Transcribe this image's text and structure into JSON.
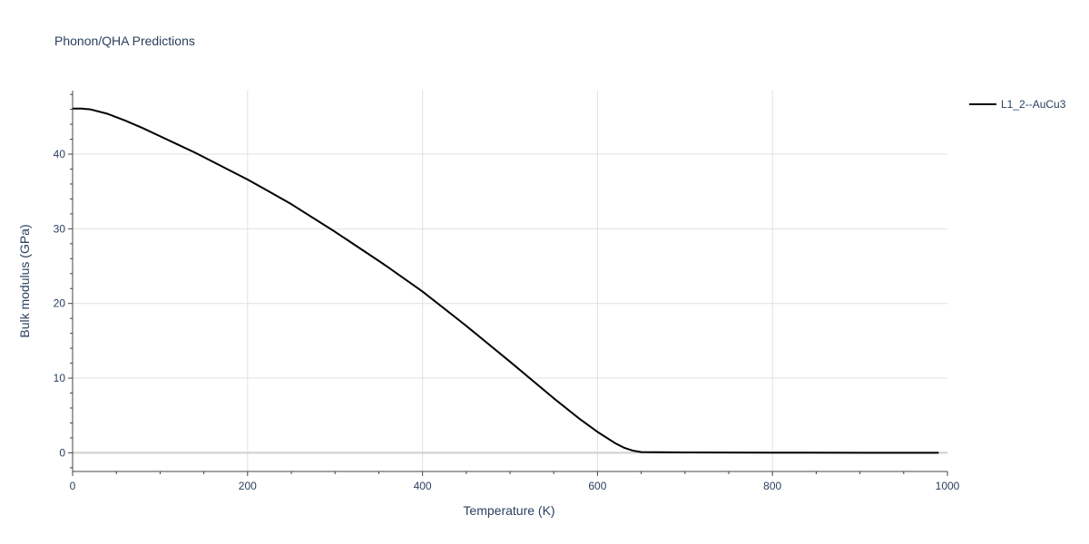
{
  "chart_data": {
    "type": "line",
    "title": "Phonon/QHA Predictions",
    "xlabel": "Temperature (K)",
    "ylabel": "Bulk modulus (GPa)",
    "xlim": [
      0,
      1000
    ],
    "ylim": [
      -2.5,
      48.5
    ],
    "x_ticks": [
      0,
      200,
      400,
      600,
      800,
      1000
    ],
    "y_ticks": [
      0,
      10,
      20,
      30,
      40
    ],
    "grid": true,
    "legend_position": "top-right",
    "series": [
      {
        "name": "L1_2--AuCu3",
        "color": "#000000",
        "x": [
          0,
          10,
          20,
          40,
          60,
          80,
          100,
          120,
          140,
          160,
          180,
          200,
          220,
          250,
          300,
          350,
          360,
          400,
          450,
          500,
          550,
          580,
          600,
          620,
          630,
          640,
          650,
          700,
          800,
          900,
          990
        ],
        "y": [
          46.1,
          46.1,
          46.0,
          45.4,
          44.5,
          43.5,
          42.4,
          41.3,
          40.2,
          39.0,
          37.8,
          36.6,
          35.3,
          33.3,
          29.6,
          25.7,
          24.9,
          21.6,
          17.0,
          12.2,
          7.3,
          4.5,
          2.8,
          1.3,
          0.7,
          0.3,
          0.1,
          0.05,
          0.02,
          0.01,
          0.0
        ]
      }
    ]
  }
}
